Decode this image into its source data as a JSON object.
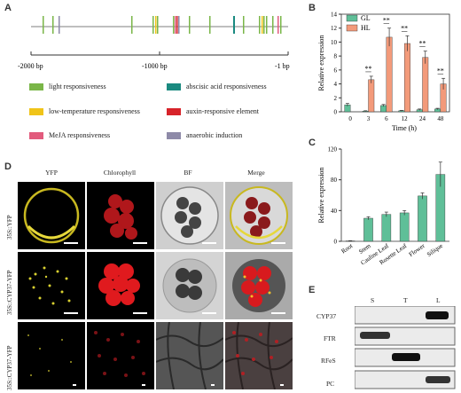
{
  "panels": {
    "a": "A",
    "b": "B",
    "c": "C",
    "d": "D",
    "e": "E"
  },
  "promoter": {
    "axis_labels": [
      "-2000 bp",
      "-1000 bp",
      "-1 bp"
    ],
    "legend": [
      {
        "label": "light responsiveness",
        "color": "#7ab648"
      },
      {
        "label": "abscisic acid responsiveness",
        "color": "#1a8a80"
      },
      {
        "label": "low-temperature responsiveness",
        "color": "#f0c419"
      },
      {
        "label": "auxin-responsive element",
        "color": "#d7232a"
      },
      {
        "label": "MeJA responsiveness",
        "color": "#e25b7d"
      },
      {
        "label": "anaerobic induction",
        "color": "#8e8aa8"
      }
    ]
  },
  "chart_data": [
    {
      "type": "bar",
      "panel": "B",
      "ylabel": "Relative expression",
      "xlabel": "Time (h)",
      "categories": [
        "0",
        "3",
        "6",
        "12",
        "24",
        "48"
      ],
      "ylim": [
        0,
        14
      ],
      "yticks": [
        0,
        2,
        4,
        6,
        8,
        10,
        12,
        14
      ],
      "series": [
        {
          "name": "GL",
          "color": "#5fbf98",
          "values": [
            1.0,
            0.1,
            0.9,
            0.15,
            0.3,
            0.4
          ],
          "errors": [
            0.2,
            0.05,
            0.15,
            0.05,
            0.1,
            0.1
          ]
        },
        {
          "name": "HL",
          "color": "#f39a7a",
          "values": [
            null,
            4.6,
            10.7,
            9.8,
            7.8,
            4.0
          ],
          "errors": [
            null,
            0.5,
            1.3,
            1.1,
            0.9,
            0.8
          ]
        }
      ],
      "annotations": [
        "**",
        "**",
        "**",
        "**",
        "**",
        "**"
      ],
      "legend_position": "top-left"
    },
    {
      "type": "bar",
      "panel": "C",
      "ylabel": "Relative expression",
      "categories": [
        "Root",
        "Stem",
        "Cauline Leaf",
        "Rosette Leaf",
        "Flower",
        "Silique"
      ],
      "values": [
        0.5,
        30,
        35,
        37,
        59,
        87
      ],
      "errors": [
        0.3,
        2,
        3,
        3,
        4,
        16
      ],
      "color": "#5fbf98",
      "ylim": [
        0,
        120
      ],
      "yticks": [
        0,
        40,
        80,
        120
      ]
    }
  ],
  "microscopy": {
    "columns": [
      "YFP",
      "Chlorophyll",
      "BF",
      "Merge"
    ],
    "rows": [
      "35S::YFP",
      "35S::CYP37-YFP",
      "35S::CYP37-YFP"
    ]
  },
  "blot": {
    "lanes": [
      "S",
      "T",
      "L"
    ],
    "rows": [
      "CYP37",
      "FTR",
      "RFeS",
      "PC"
    ]
  }
}
